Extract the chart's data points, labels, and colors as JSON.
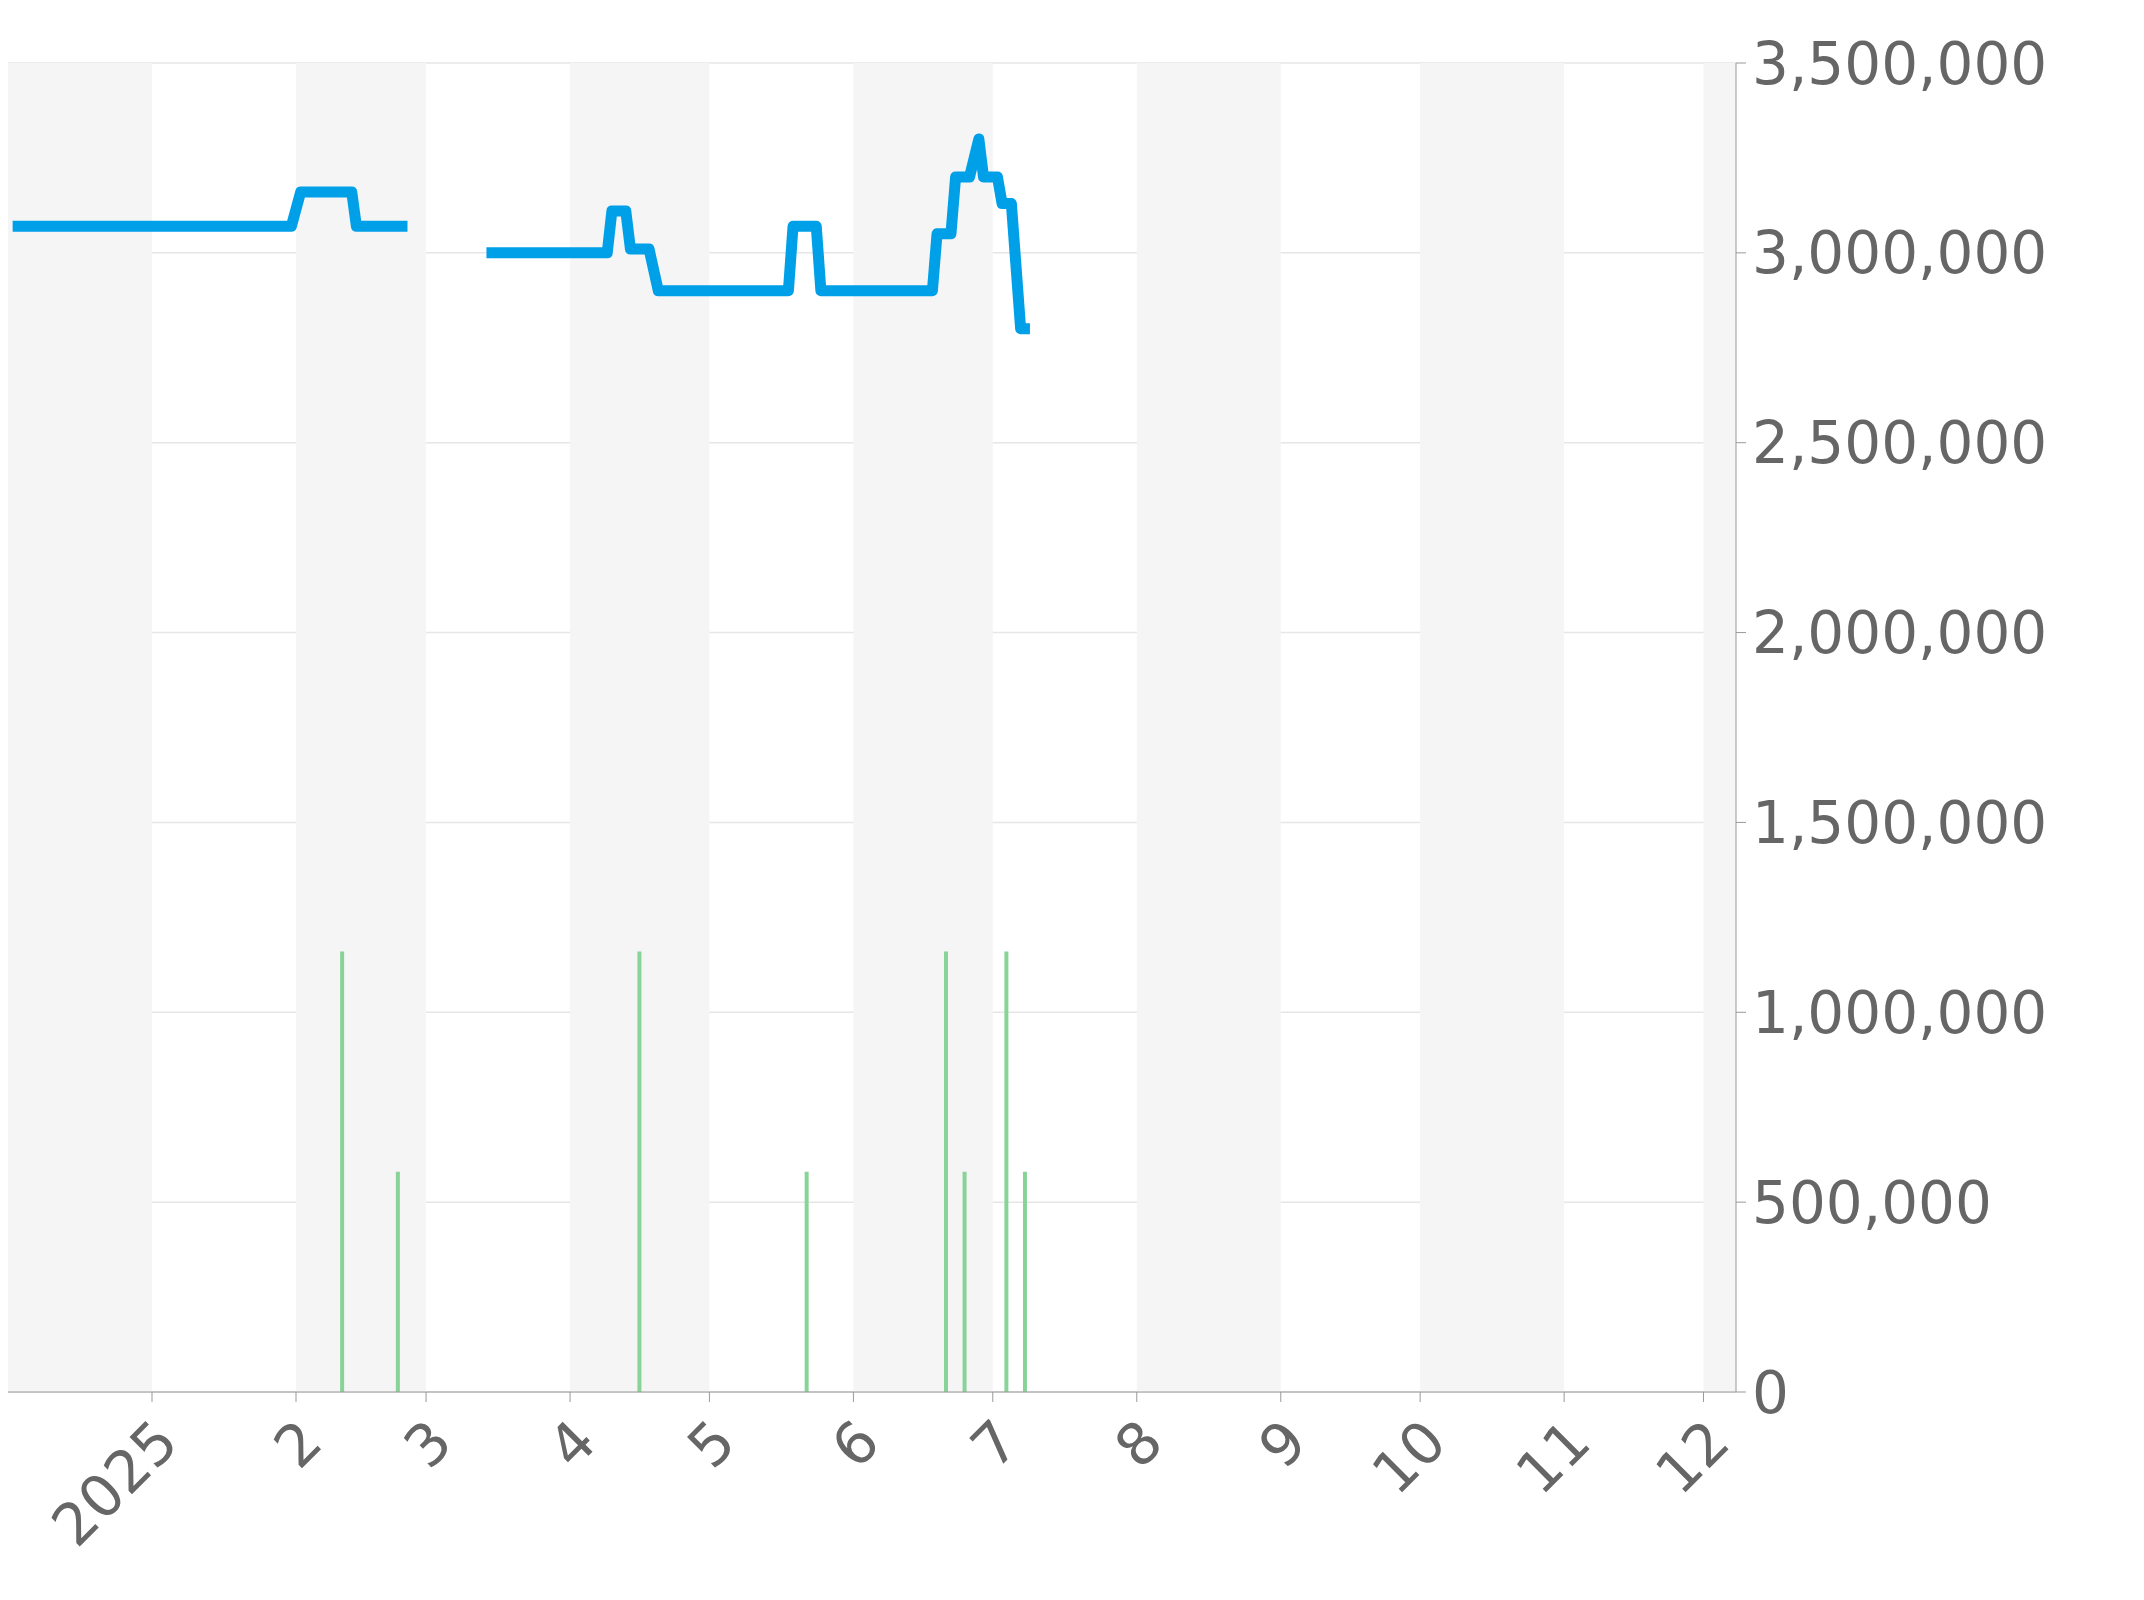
{
  "chart_data": {
    "type": "line",
    "xlim": [
      "2024-12-01",
      "2025-12-08"
    ],
    "xticks": [
      {
        "value": "2025-01-01",
        "label": "2025"
      },
      {
        "value": "2025-02-01",
        "label": "2"
      },
      {
        "value": "2025-03-01",
        "label": "3"
      },
      {
        "value": "2025-04-01",
        "label": "4"
      },
      {
        "value": "2025-05-01",
        "label": "5"
      },
      {
        "value": "2025-06-01",
        "label": "6"
      },
      {
        "value": "2025-07-01",
        "label": "7"
      },
      {
        "value": "2025-08-01",
        "label": "8"
      },
      {
        "value": "2025-09-01",
        "label": "9"
      },
      {
        "value": "2025-10-01",
        "label": "10"
      },
      {
        "value": "2025-11-01",
        "label": "11"
      },
      {
        "value": "2025-12-01",
        "label": "12"
      }
    ],
    "ylim": [
      0,
      3500000
    ],
    "yticks": [
      0,
      {
        "value": 500000,
        "label": "500,000"
      },
      {
        "value": 1000000,
        "label": "1,000,000"
      },
      {
        "value": 1500000,
        "label": "1,500,000"
      },
      {
        "value": 2000000,
        "label": "2,000,000"
      },
      {
        "value": 2500000,
        "label": "2,500,000"
      },
      {
        "value": 3000000,
        "label": "3,000,000"
      },
      {
        "value": 3500000,
        "label": "3,500,000"
      }
    ],
    "grid": "y",
    "legend": false,
    "marker": "none",
    "series": [
      {
        "color": "#00a0e9",
        "x": [
          "2024-12-02",
          "2025-01-31",
          "2025-02-02",
          "2025-02-13",
          "2025-02-14",
          "2025-02-25",
          "2025-03-05",
          "2025-03-14",
          "2025-04-09",
          "2025-04-10",
          "2025-04-13",
          "2025-04-14",
          "2025-04-18",
          "2025-04-20",
          "2025-05-18",
          "2025-05-19",
          "2025-05-24",
          "2025-05-25",
          "2025-06-18",
          "2025-06-19",
          "2025-06-22",
          "2025-06-23",
          "2025-06-26",
          "2025-06-28",
          "2025-06-29",
          "2025-07-02",
          "2025-07-03",
          "2025-07-05",
          "2025-07-07",
          "2025-07-09"
        ],
        "values": [
          3070000,
          3070000,
          3160000,
          3160000,
          3070000,
          3070000,
          null,
          3000000,
          3000000,
          3110000,
          3110000,
          3010000,
          3010000,
          2900000,
          2900000,
          3070000,
          3070000,
          2900000,
          2900000,
          3050000,
          3050000,
          3200000,
          3200000,
          3300000,
          3200000,
          3200000,
          3130000,
          3130000,
          2800000,
          2800000
        ]
      },
      {
        "type": "bar",
        "color": "#88d498",
        "x": [
          "2025-02-11",
          "2025-02-23",
          "2025-04-16",
          "2025-05-22",
          "2025-06-21",
          "2025-06-25",
          "2025-07-04",
          "2025-07-08"
        ],
        "values": [
          1160000,
          580000,
          1160000,
          580000,
          1160000,
          580000,
          1160000,
          580000
        ]
      }
    ],
    "bands": [
      {
        "axis": "x",
        "from": "2024-12-01",
        "to": "2025-01-01",
        "color": "#f5f5f5"
      },
      {
        "axis": "x",
        "from": "2025-02-01",
        "to": "2025-03-01",
        "color": "#f5f5f5"
      },
      {
        "axis": "x",
        "from": "2025-04-01",
        "to": "2025-05-01",
        "color": "#f5f5f5"
      },
      {
        "axis": "x",
        "from": "2025-06-01",
        "to": "2025-07-01",
        "color": "#f5f5f5"
      },
      {
        "axis": "x",
        "from": "2025-08-01",
        "to": "2025-09-01",
        "color": "#f5f5f5"
      },
      {
        "axis": "x",
        "from": "2025-10-01",
        "to": "2025-11-01",
        "color": "#f5f5f5"
      },
      {
        "axis": "x",
        "from": "2025-12-01",
        "to": "2025-12-08",
        "color": "#f5f5f5"
      }
    ]
  }
}
